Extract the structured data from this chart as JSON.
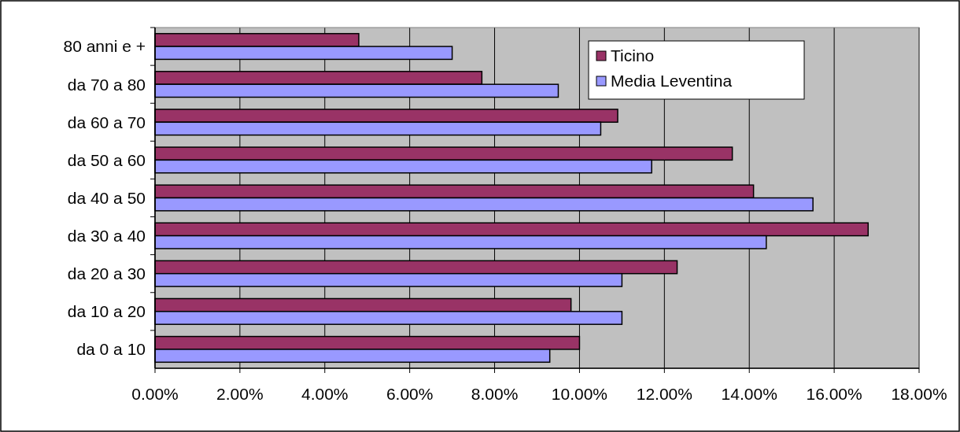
{
  "chart_data": {
    "type": "bar",
    "orientation": "horizontal",
    "categories": [
      "80 anni e +",
      "da 70 a 80",
      "da 60 a 70",
      "da 50 a 60",
      "da 40 a 50",
      "da 30 a 40",
      "da 20 a 30",
      "da 10 a 20",
      "da 0 a 10"
    ],
    "series": [
      {
        "name": "Ticino",
        "color": "#993366",
        "values": [
          4.8,
          7.7,
          10.9,
          13.6,
          14.1,
          16.8,
          12.3,
          9.8,
          10.0
        ]
      },
      {
        "name": "Media Leventina",
        "color": "#9999ff",
        "values": [
          7.0,
          9.5,
          10.5,
          11.7,
          15.5,
          14.4,
          11.0,
          11.0,
          9.3
        ]
      }
    ],
    "xlim": [
      0,
      18
    ],
    "xticks": [
      {
        "value": 0,
        "label": "0.00%"
      },
      {
        "value": 2,
        "label": "2.00%"
      },
      {
        "value": 4,
        "label": "4.00%"
      },
      {
        "value": 6,
        "label": "6.00%"
      },
      {
        "value": 8,
        "label": "8.00%"
      },
      {
        "value": 10,
        "label": "10.00%"
      },
      {
        "value": 12,
        "label": "12.00%"
      },
      {
        "value": 14,
        "label": "14.00%"
      },
      {
        "value": 16,
        "label": "16.00%"
      },
      {
        "value": 18,
        "label": "18.00%"
      }
    ],
    "grid": "x",
    "legend": "top right"
  }
}
